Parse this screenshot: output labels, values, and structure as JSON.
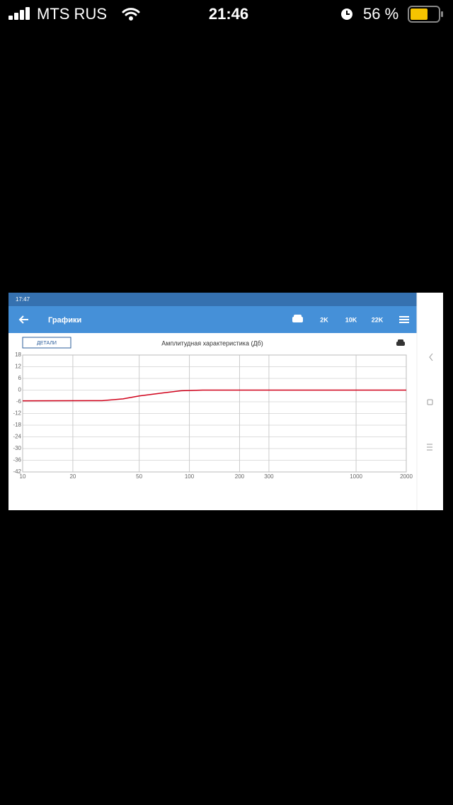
{
  "status_bar": {
    "carrier": "MTS RUS",
    "time": "21:46",
    "battery": "56 %"
  },
  "app": {
    "status_time": "17:47",
    "title": "Графики",
    "actions": [
      "2K",
      "10K",
      "22K"
    ],
    "button": "ДЕТАЛИ"
  },
  "chart_data": {
    "type": "line",
    "title": "Амплитудная характеристика (Дб)",
    "x": [
      10,
      30,
      40,
      50,
      70,
      90,
      120,
      2000
    ],
    "series": [
      {
        "color": "#d0021b",
        "values": [
          -5.5,
          -5.4,
          -4.5,
          -3,
          -1.4,
          -0.3,
          0,
          0
        ]
      }
    ],
    "xscale": "log",
    "xlim": [
      10,
      2000
    ],
    "xticks": [
      10,
      20,
      50,
      100,
      200,
      300,
      1000,
      2000
    ],
    "ylim": [
      -42,
      18
    ],
    "yticks": [
      18,
      12,
      6,
      0,
      -6,
      -12,
      -18,
      -24,
      -30,
      -36,
      -42
    ],
    "grid": true
  }
}
